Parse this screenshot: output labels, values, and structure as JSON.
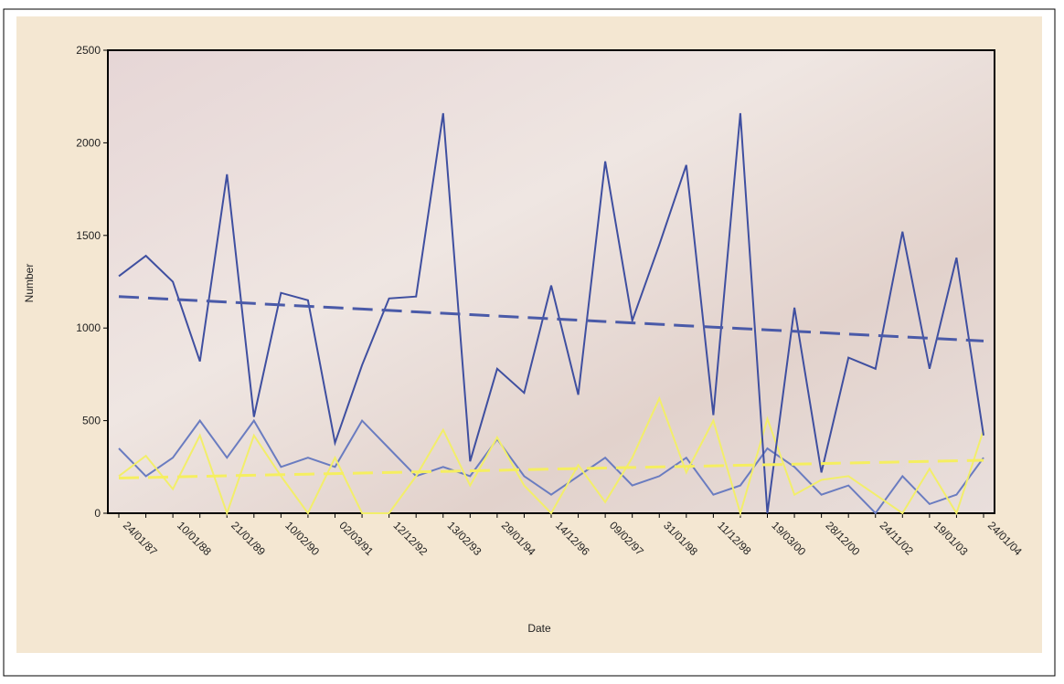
{
  "chart_data": {
    "type": "line",
    "x_label": "Date",
    "y_label": "Number",
    "categories": [
      "24/01/87",
      null,
      "10/01/88",
      null,
      "21/01/89",
      null,
      "10/02/90",
      null,
      "02/03/91",
      null,
      "12/12/92",
      null,
      "13/02/93",
      null,
      "29/01/94",
      null,
      "14/12/96",
      null,
      "09/02/97",
      null,
      "31/01/98",
      null,
      "11/12/98",
      null,
      "19/03/00",
      null,
      "28/12/00",
      null,
      "24/11/02",
      null,
      "19/01/03",
      null,
      "24/01/04"
    ],
    "ylim": [
      0,
      2500
    ],
    "yticks": [
      0,
      500,
      1000,
      1500,
      2000,
      2500
    ],
    "series": [
      {
        "color": "#6a7cc0",
        "values": [
          350,
          200,
          300,
          500,
          300,
          500,
          250,
          300,
          250,
          500,
          350,
          200,
          250,
          200,
          400,
          200,
          100,
          200,
          300,
          150,
          200,
          300,
          100,
          150,
          350,
          250,
          100,
          150,
          0,
          200,
          50,
          100,
          300
        ]
      },
      {
        "color": "#f2ee6a",
        "values": [
          200,
          310,
          130,
          420,
          0,
          420,
          200,
          0,
          300,
          0,
          0,
          200,
          450,
          150,
          410,
          150,
          0,
          260,
          60,
          300,
          620,
          220,
          500,
          0,
          510,
          100,
          180,
          200,
          100,
          0,
          240,
          0,
          450
        ]
      },
      {
        "color": "#3f4fa0",
        "values": [
          1280,
          1390,
          1250,
          820,
          1830,
          520,
          1190,
          1150,
          380,
          800,
          1160,
          1170,
          2160,
          280,
          780,
          650,
          1230,
          640,
          1900,
          1040,
          1450,
          1880,
          530,
          2160,
          0,
          1110,
          220,
          840,
          780,
          1520,
          780,
          1380,
          420
        ]
      },
      {
        "color": "#4a5aa8",
        "dashed": true,
        "values": [
          1170,
          1162.5,
          1155,
          1147.5,
          1140,
          1132.5,
          1125,
          1117.5,
          1110,
          1102.5,
          1095,
          1087.5,
          1080,
          1072.5,
          1065,
          1057.5,
          1050,
          1042.5,
          1035,
          1027.5,
          1020,
          1012.5,
          1005,
          997.5,
          990,
          982.5,
          975,
          967.5,
          960,
          952.5,
          945,
          937.5,
          930
        ]
      },
      {
        "color": "#f5ee60",
        "dashed": true,
        "values": [
          190,
          193,
          196,
          199,
          202,
          205,
          208,
          211,
          214,
          217,
          220,
          223,
          226,
          229,
          232,
          235,
          238,
          241,
          244,
          247,
          250,
          253,
          256,
          259,
          262,
          265,
          268,
          271,
          274,
          277,
          280,
          283,
          286
        ]
      }
    ]
  }
}
